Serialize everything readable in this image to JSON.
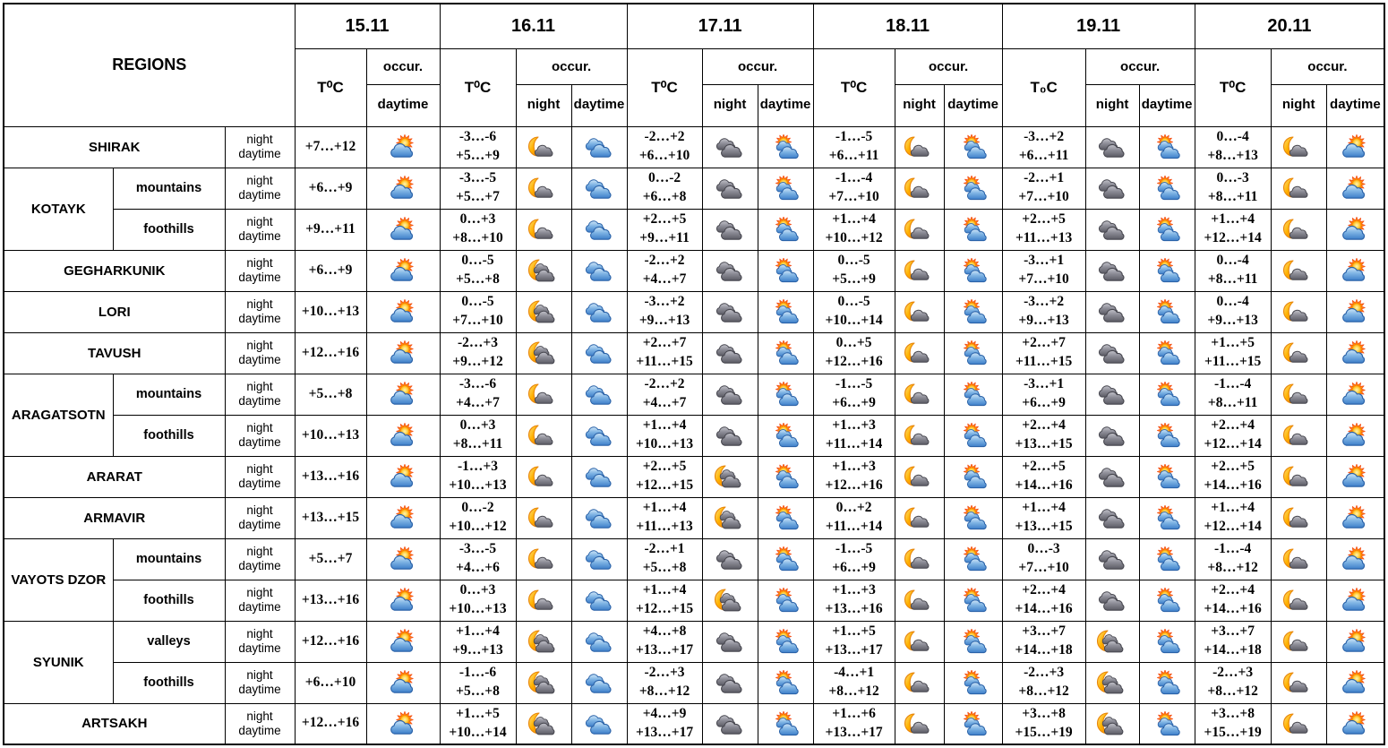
{
  "table": {
    "regions_header": "REGIONS",
    "row_label": {
      "line1": "night",
      "line2": "daytime"
    },
    "dates": [
      {
        "label": "15.11",
        "temp_header": "T⁰C",
        "occur_label": "occur.",
        "cols": [
          "daytime"
        ]
      },
      {
        "label": "16.11",
        "temp_header": "T⁰C",
        "occur_label": "occur.",
        "cols": [
          "night",
          "daytime"
        ]
      },
      {
        "label": "17.11",
        "temp_header": "T⁰C",
        "occur_label": "occur.",
        "cols": [
          "night",
          "daytime"
        ]
      },
      {
        "label": "18.11",
        "temp_header": "T⁰C",
        "occur_label": "occur.",
        "cols": [
          "night",
          "daytime"
        ]
      },
      {
        "label": "19.11",
        "temp_header": "T₀C",
        "occur_label": "occur.",
        "cols": [
          "night",
          "daytime"
        ]
      },
      {
        "label": "20.11",
        "temp_header": "T⁰C",
        "occur_label": "occur.",
        "cols": [
          "night",
          "daytime"
        ]
      }
    ],
    "groups": [
      {
        "name": "SHIRAK",
        "rows": [
          {
            "sub": null,
            "cells": [
              {
                "t": "+7…+12",
                "day": "sun-cloud"
              },
              {
                "night_t": "-3…-6",
                "day_t": "+5…+9",
                "night": "moon-cloud",
                "day": "clouds-blue"
              },
              {
                "night_t": "-2…+2",
                "day_t": "+6…+10",
                "night": "dark-clouds",
                "day": "sun-clouds"
              },
              {
                "night_t": "-1…-5",
                "day_t": "+6…+11",
                "night": "moon-cloud",
                "day": "sun-clouds"
              },
              {
                "night_t": "-3…+2",
                "day_t": "+6…+11",
                "night": "dark-clouds",
                "day": "sun-clouds"
              },
              {
                "night_t": "0…-4",
                "day_t": "+8…+13",
                "night": "moon-cloud",
                "day": "sun-cloud"
              }
            ]
          }
        ]
      },
      {
        "name": "KOTAYK",
        "rows": [
          {
            "sub": "mountains",
            "cells": [
              {
                "t": "+6…+9",
                "day": "sun-cloud"
              },
              {
                "night_t": "-3…-5",
                "day_t": "+5…+7",
                "night": "moon-cloud",
                "day": "clouds-blue"
              },
              {
                "night_t": "0…-2",
                "day_t": "+6…+8",
                "night": "dark-clouds",
                "day": "sun-clouds"
              },
              {
                "night_t": "-1…-4",
                "day_t": "+7…+10",
                "night": "moon-cloud",
                "day": "sun-clouds"
              },
              {
                "night_t": "-2…+1",
                "day_t": "+7…+10",
                "night": "dark-clouds",
                "day": "sun-clouds"
              },
              {
                "night_t": "0…-3",
                "day_t": "+8…+11",
                "night": "moon-cloud",
                "day": "sun-cloud"
              }
            ]
          },
          {
            "sub": "foothills",
            "cells": [
              {
                "t": "+9…+11",
                "day": "sun-cloud"
              },
              {
                "night_t": "0…+3",
                "day_t": "+8…+10",
                "night": "moon-cloud",
                "day": "clouds-blue"
              },
              {
                "night_t": "+2…+5",
                "day_t": "+9…+11",
                "night": "dark-clouds",
                "day": "sun-clouds"
              },
              {
                "night_t": "+1…+4",
                "day_t": "+10…+12",
                "night": "moon-cloud",
                "day": "sun-clouds"
              },
              {
                "night_t": "+2…+5",
                "day_t": "+11…+13",
                "night": "dark-clouds",
                "day": "sun-clouds"
              },
              {
                "night_t": "+1…+4",
                "day_t": "+12…+14",
                "night": "moon-cloud",
                "day": "sun-cloud"
              }
            ]
          }
        ]
      },
      {
        "name": "GEGHARKUNIK",
        "rows": [
          {
            "sub": null,
            "cells": [
              {
                "t": "+6…+9",
                "day": "sun-cloud"
              },
              {
                "night_t": "0…-5",
                "day_t": "+5…+8",
                "night": "moon-clouds",
                "day": "clouds-blue"
              },
              {
                "night_t": "-2…+2",
                "day_t": "+4…+7",
                "night": "dark-clouds",
                "day": "sun-clouds"
              },
              {
                "night_t": "0…-5",
                "day_t": "+5…+9",
                "night": "moon-cloud",
                "day": "sun-clouds"
              },
              {
                "night_t": "-3…+1",
                "day_t": "+7…+10",
                "night": "dark-clouds",
                "day": "sun-clouds"
              },
              {
                "night_t": "0…-4",
                "day_t": "+8…+11",
                "night": "moon-cloud",
                "day": "sun-cloud"
              }
            ]
          }
        ]
      },
      {
        "name": "LORI",
        "rows": [
          {
            "sub": null,
            "cells": [
              {
                "t": "+10…+13",
                "day": "sun-cloud"
              },
              {
                "night_t": "0…-5",
                "day_t": "+7…+10",
                "night": "moon-clouds",
                "day": "clouds-blue"
              },
              {
                "night_t": "-3…+2",
                "day_t": "+9…+13",
                "night": "dark-clouds",
                "day": "sun-clouds"
              },
              {
                "night_t": "0…-5",
                "day_t": "+10…+14",
                "night": "moon-cloud",
                "day": "sun-clouds"
              },
              {
                "night_t": "-3…+2",
                "day_t": "+9…+13",
                "night": "dark-clouds",
                "day": "sun-clouds"
              },
              {
                "night_t": "0…-4",
                "day_t": "+9…+13",
                "night": "moon-cloud",
                "day": "sun-cloud"
              }
            ]
          }
        ]
      },
      {
        "name": "TAVUSH",
        "rows": [
          {
            "sub": null,
            "cells": [
              {
                "t": "+12…+16",
                "day": "sun-cloud"
              },
              {
                "night_t": "-2…+3",
                "day_t": "+9…+12",
                "night": "moon-clouds",
                "day": "clouds-blue"
              },
              {
                "night_t": "+2…+7",
                "day_t": "+11…+15",
                "night": "dark-clouds",
                "day": "sun-clouds"
              },
              {
                "night_t": "0…+5",
                "day_t": "+12…+16",
                "night": "moon-cloud",
                "day": "sun-clouds"
              },
              {
                "night_t": "+2…+7",
                "day_t": "+11…+15",
                "night": "dark-clouds",
                "day": "sun-clouds"
              },
              {
                "night_t": "+1…+5",
                "day_t": "+11…+15",
                "night": "moon-cloud",
                "day": "sun-cloud"
              }
            ]
          }
        ]
      },
      {
        "name": "ARAGATSOTN",
        "rows": [
          {
            "sub": "mountains",
            "cells": [
              {
                "t": "+5…+8",
                "day": "sun-cloud"
              },
              {
                "night_t": "-3…-6",
                "day_t": "+4…+7",
                "night": "moon-cloud",
                "day": "clouds-blue"
              },
              {
                "night_t": "-2…+2",
                "day_t": "+4…+7",
                "night": "dark-clouds",
                "day": "sun-clouds"
              },
              {
                "night_t": "-1…-5",
                "day_t": "+6…+9",
                "night": "moon-cloud",
                "day": "sun-clouds"
              },
              {
                "night_t": "-3…+1",
                "day_t": "+6…+9",
                "night": "dark-clouds",
                "day": "sun-clouds"
              },
              {
                "night_t": "-1…-4",
                "day_t": "+8…+11",
                "night": "moon-cloud",
                "day": "sun-cloud"
              }
            ]
          },
          {
            "sub": "foothills",
            "cells": [
              {
                "t": "+10…+13",
                "day": "sun-cloud"
              },
              {
                "night_t": "0…+3",
                "day_t": "+8…+11",
                "night": "moon-cloud",
                "day": "clouds-blue"
              },
              {
                "night_t": "+1…+4",
                "day_t": "+10…+13",
                "night": "dark-clouds",
                "day": "sun-clouds"
              },
              {
                "night_t": "+1…+3",
                "day_t": "+11…+14",
                "night": "moon-cloud",
                "day": "sun-clouds"
              },
              {
                "night_t": "+2…+4",
                "day_t": "+13…+15",
                "night": "dark-clouds",
                "day": "sun-clouds"
              },
              {
                "night_t": "+2…+4",
                "day_t": "+12…+14",
                "night": "moon-cloud",
                "day": "sun-cloud"
              }
            ]
          }
        ]
      },
      {
        "name": "ARARAT",
        "rows": [
          {
            "sub": null,
            "cells": [
              {
                "t": "+13…+16",
                "day": "sun-cloud"
              },
              {
                "night_t": "-1…+3",
                "day_t": "+10…+13",
                "night": "moon-cloud",
                "day": "clouds-blue"
              },
              {
                "night_t": "+2…+5",
                "day_t": "+12…+15",
                "night": "moon-clouds",
                "day": "sun-clouds"
              },
              {
                "night_t": "+1…+3",
                "day_t": "+12…+16",
                "night": "moon-cloud",
                "day": "sun-clouds"
              },
              {
                "night_t": "+2…+5",
                "day_t": "+14…+16",
                "night": "dark-clouds",
                "day": "sun-clouds"
              },
              {
                "night_t": "+2…+5",
                "day_t": "+14…+16",
                "night": "moon-cloud",
                "day": "sun-cloud"
              }
            ]
          }
        ]
      },
      {
        "name": "ARMAVIR",
        "rows": [
          {
            "sub": null,
            "cells": [
              {
                "t": "+13…+15",
                "day": "sun-cloud"
              },
              {
                "night_t": "0…-2",
                "day_t": "+10…+12",
                "night": "moon-cloud",
                "day": "clouds-blue"
              },
              {
                "night_t": "+1…+4",
                "day_t": "+11…+13",
                "night": "moon-clouds",
                "day": "sun-clouds"
              },
              {
                "night_t": "0…+2",
                "day_t": "+11…+14",
                "night": "moon-cloud",
                "day": "sun-clouds"
              },
              {
                "night_t": "+1…+4",
                "day_t": "+13…+15",
                "night": "dark-clouds",
                "day": "sun-clouds"
              },
              {
                "night_t": "+1…+4",
                "day_t": "+12…+14",
                "night": "moon-cloud",
                "day": "sun-cloud"
              }
            ]
          }
        ]
      },
      {
        "name": "VAYOTS DZOR",
        "rows": [
          {
            "sub": "mountains",
            "cells": [
              {
                "t": "+5…+7",
                "day": "sun-cloud"
              },
              {
                "night_t": "-3…-5",
                "day_t": "+4…+6",
                "night": "moon-cloud",
                "day": "clouds-blue"
              },
              {
                "night_t": "-2…+1",
                "day_t": "+5…+8",
                "night": "dark-clouds",
                "day": "sun-clouds"
              },
              {
                "night_t": "-1…-5",
                "day_t": "+6…+9",
                "night": "moon-cloud",
                "day": "sun-clouds"
              },
              {
                "night_t": "0…-3",
                "day_t": "+7…+10",
                "night": "dark-clouds",
                "day": "sun-clouds"
              },
              {
                "night_t": "-1…-4",
                "day_t": "+8…+12",
                "night": "moon-cloud",
                "day": "sun-cloud"
              }
            ]
          },
          {
            "sub": "foothills",
            "cells": [
              {
                "t": "+13…+16",
                "day": "sun-cloud"
              },
              {
                "night_t": "0…+3",
                "day_t": "+10…+13",
                "night": "moon-cloud",
                "day": "clouds-blue"
              },
              {
                "night_t": "+1…+4",
                "day_t": "+12…+15",
                "night": "moon-clouds",
                "day": "sun-clouds"
              },
              {
                "night_t": "+1…+3",
                "day_t": "+13…+16",
                "night": "moon-cloud",
                "day": "sun-clouds"
              },
              {
                "night_t": "+2…+4",
                "day_t": "+14…+16",
                "night": "dark-clouds",
                "day": "sun-clouds"
              },
              {
                "night_t": "+2…+4",
                "day_t": "+14…+16",
                "night": "moon-cloud",
                "day": "sun-cloud"
              }
            ]
          }
        ]
      },
      {
        "name": "SYUNIK",
        "rows": [
          {
            "sub": "valleys",
            "cells": [
              {
                "t": "+12…+16",
                "day": "sun-cloud"
              },
              {
                "night_t": "+1…+4",
                "day_t": "+9…+13",
                "night": "moon-clouds",
                "day": "clouds-blue"
              },
              {
                "night_t": "+4…+8",
                "day_t": "+13…+17",
                "night": "dark-clouds",
                "day": "sun-clouds"
              },
              {
                "night_t": "+1…+5",
                "day_t": "+13…+17",
                "night": "moon-cloud",
                "day": "sun-clouds"
              },
              {
                "night_t": "+3…+7",
                "day_t": "+14…+18",
                "night": "moon-clouds",
                "day": "sun-clouds"
              },
              {
                "night_t": "+3…+7",
                "day_t": "+14…+18",
                "night": "moon-cloud",
                "day": "sun-cloud"
              }
            ]
          },
          {
            "sub": "foothills",
            "cells": [
              {
                "t": "+6…+10",
                "day": "sun-cloud"
              },
              {
                "night_t": "-1…-6",
                "day_t": "+5…+8",
                "night": "moon-clouds",
                "day": "clouds-blue"
              },
              {
                "night_t": "-2…+3",
                "day_t": "+8…+12",
                "night": "dark-clouds",
                "day": "sun-clouds"
              },
              {
                "night_t": "-4…+1",
                "day_t": "+8…+12",
                "night": "moon-cloud",
                "day": "sun-clouds"
              },
              {
                "night_t": "-2…+3",
                "day_t": "+8…+12",
                "night": "moon-clouds",
                "day": "sun-clouds"
              },
              {
                "night_t": "-2…+3",
                "day_t": "+8…+12",
                "night": "moon-cloud",
                "day": "sun-cloud"
              }
            ]
          }
        ]
      },
      {
        "name": "ARTSAKH",
        "rows": [
          {
            "sub": null,
            "cells": [
              {
                "t": "+12…+16",
                "day": "sun-cloud"
              },
              {
                "night_t": "+1…+5",
                "day_t": "+10…+14",
                "night": "moon-clouds",
                "day": "clouds-blue"
              },
              {
                "night_t": "+4…+9",
                "day_t": "+13…+17",
                "night": "dark-clouds",
                "day": "sun-clouds"
              },
              {
                "night_t": "+1…+6",
                "day_t": "+13…+17",
                "night": "moon-cloud",
                "day": "sun-clouds"
              },
              {
                "night_t": "+3…+8",
                "day_t": "+15…+19",
                "night": "moon-clouds",
                "day": "sun-clouds"
              },
              {
                "night_t": "+3…+8",
                "day_t": "+15…+19",
                "night": "moon-cloud",
                "day": "sun-cloud"
              }
            ]
          }
        ]
      }
    ]
  },
  "icon_legend": {
    "sun-cloud": "sun behind cloud — partly cloudy day",
    "sun-clouds": "sun with two clouds — partly cloudy day",
    "clouds-blue": "blue clouds — cloudy day",
    "moon-cloud": "crescent moon with cloud — partly cloudy night",
    "moon-clouds": "crescent moon with clouds — mostly cloudy night",
    "dark-clouds": "gray clouds — cloudy night"
  },
  "colors": {
    "border": "#000000",
    "background": "#ffffff",
    "text": "#000000",
    "sun_core": "#FFD54F",
    "sun_ray": "#FF8F00",
    "cloud_blue": "#3D7EC9",
    "cloud_blue_light": "#CFE6F8",
    "cloud_gray": "#5B5B64",
    "cloud_gray_light": "#C2C2CA",
    "moon": "#FFB300"
  }
}
